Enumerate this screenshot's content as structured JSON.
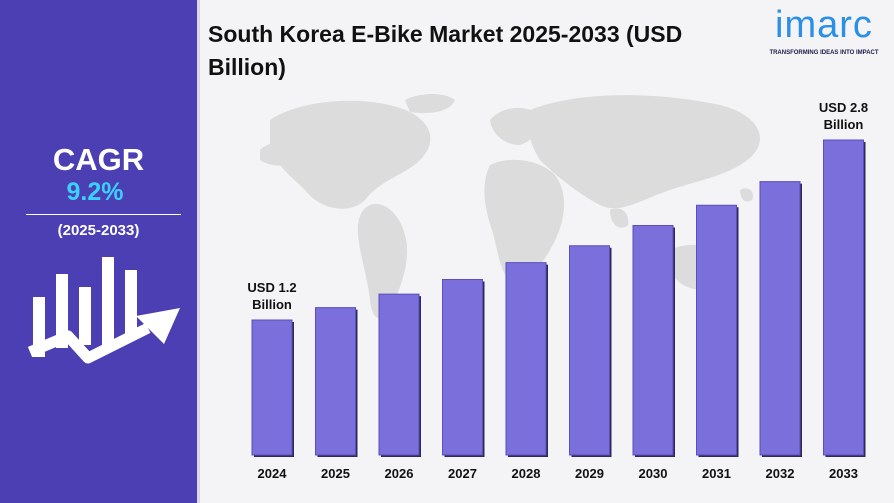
{
  "sidebar": {
    "cagr_label": "CAGR",
    "cagr_value": "9.2%",
    "cagr_period": "(2025-2033)",
    "icon": "bar-growth-arrow-icon"
  },
  "header": {
    "title": "South Korea E-Bike Market 2025-2033 (USD Billion)"
  },
  "logo": {
    "word": "imarc",
    "tagline": "TRANSFORMING IDEAS INTO IMPACT"
  },
  "colors": {
    "sidebar": "#4b3fb3",
    "cagr_value": "#3bd1ff",
    "bar": "#7b6fdb",
    "bar_dark": "#5a4ec0",
    "map": "#dcdcdc",
    "logo": "#2a8fe8"
  },
  "chart_data": {
    "type": "bar",
    "title": "South Korea E-Bike Market 2025-2033 (USD Billion)",
    "categories": [
      "2024",
      "2025",
      "2026",
      "2027",
      "2028",
      "2029",
      "2030",
      "2031",
      "2032",
      "2033"
    ],
    "values": [
      1.2,
      1.31,
      1.43,
      1.56,
      1.71,
      1.86,
      2.04,
      2.22,
      2.43,
      2.8
    ],
    "data_labels": [
      {
        "index": 0,
        "line1": "USD 1.2",
        "line2": "Billion"
      },
      {
        "index": 9,
        "line1": "USD 2.8",
        "line2": "Billion"
      }
    ],
    "xlabel": "",
    "ylabel": "",
    "grid": false,
    "legend": "none"
  }
}
